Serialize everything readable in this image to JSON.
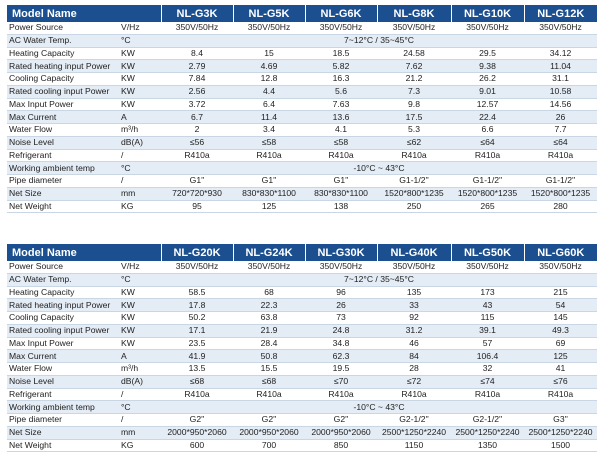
{
  "table1": {
    "header_label": "Model Name",
    "models": [
      "NL-G3K",
      "NL-G5K",
      "NL-G6K",
      "NL-G8K",
      "NL-G10K",
      "NL-G12K"
    ],
    "rows": [
      {
        "label": "Power Source",
        "unit": "V/Hz",
        "values": [
          "350V/50Hz",
          "350V/50Hz",
          "350V/50Hz",
          "350V/50Hz",
          "350V/50Hz",
          "350V/50Hz"
        ]
      },
      {
        "label": "AC Water Temp.",
        "unit": "°C",
        "span": "7~12°C / 35~45°C"
      },
      {
        "label": "Heating Capacity",
        "unit": "KW",
        "values": [
          "8.4",
          "15",
          "18.5",
          "24.58",
          "29.5",
          "34.12"
        ]
      },
      {
        "label": "Rated heating input Power",
        "unit": "KW",
        "values": [
          "2.79",
          "4.69",
          "5.82",
          "7.62",
          "9.38",
          "11.04"
        ]
      },
      {
        "label": "Cooling Capacity",
        "unit": "KW",
        "values": [
          "7.84",
          "12.8",
          "16.3",
          "21.2",
          "26.2",
          "31.1"
        ]
      },
      {
        "label": "Rated cooling input Power",
        "unit": "KW",
        "values": [
          "2.56",
          "4.4",
          "5.6",
          "7.3",
          "9.01",
          "10.58"
        ]
      },
      {
        "label": "Max Input Power",
        "unit": "KW",
        "values": [
          "3.72",
          "6.4",
          "7.63",
          "9.8",
          "12.57",
          "14.56"
        ]
      },
      {
        "label": "Max Current",
        "unit": "A",
        "values": [
          "6.7",
          "11.4",
          "13.6",
          "17.5",
          "22.4",
          "26"
        ]
      },
      {
        "label": "Water Flow",
        "unit": "m³/h",
        "values": [
          "2",
          "3.4",
          "4.1",
          "5.3",
          "6.6",
          "7.7"
        ]
      },
      {
        "label": "Noise Level",
        "unit": "dB(A)",
        "values": [
          "≤56",
          "≤58",
          "≤58",
          "≤62",
          "≤64",
          "≤64"
        ]
      },
      {
        "label": "Refrigerant",
        "unit": "/",
        "values": [
          "R410a",
          "R410a",
          "R410a",
          "R410a",
          "R410a",
          "R410a"
        ]
      },
      {
        "label": "Working ambient temp",
        "unit": "°C",
        "span": "-10°C ~ 43°C"
      },
      {
        "label": "Pipe diameter",
        "unit": "/",
        "values": [
          "G1''",
          "G1''",
          "G1''",
          "G1-1/2''",
          "G1-1/2''",
          "G1-1/2''"
        ]
      },
      {
        "label": "Net Size",
        "unit": "mm",
        "values": [
          "720*720*930",
          "830*830*1100",
          "830*830*1100",
          "1520*800*1235",
          "1520*800*1235",
          "1520*800*1235"
        ]
      },
      {
        "label": "Net Weight",
        "unit": "KG",
        "values": [
          "95",
          "125",
          "138",
          "250",
          "265",
          "280"
        ]
      }
    ]
  },
  "table2": {
    "header_label": "Model Name",
    "models": [
      "NL-G20K",
      "NL-G24K",
      "NL-G30K",
      "NL-G40K",
      "NL-G50K",
      "NL-G60K"
    ],
    "rows": [
      {
        "label": "Power Source",
        "unit": "V/Hz",
        "values": [
          "350V/50Hz",
          "350V/50Hz",
          "350V/50Hz",
          "350V/50Hz",
          "350V/50Hz",
          "350V/50Hz"
        ]
      },
      {
        "label": "AC Water Temp.",
        "unit": "°C",
        "span": "7~12°C / 35~45°C"
      },
      {
        "label": "Heating Capacity",
        "unit": "KW",
        "values": [
          "58.5",
          "68",
          "96",
          "135",
          "173",
          "215"
        ]
      },
      {
        "label": "Rated heating input Power",
        "unit": "KW",
        "values": [
          "17.8",
          "22.3",
          "26",
          "33",
          "43",
          "54"
        ]
      },
      {
        "label": "Cooling Capacity",
        "unit": "KW",
        "values": [
          "50.2",
          "63.8",
          "73",
          "92",
          "115",
          "145"
        ]
      },
      {
        "label": "Rated cooling input Power",
        "unit": "KW",
        "values": [
          "17.1",
          "21.9",
          "24.8",
          "31.2",
          "39.1",
          "49.3"
        ]
      },
      {
        "label": "Max Input Power",
        "unit": "KW",
        "values": [
          "23.5",
          "28.4",
          "34.8",
          "46",
          "57",
          "69"
        ]
      },
      {
        "label": "Max Current",
        "unit": "A",
        "values": [
          "41.9",
          "50.8",
          "62.3",
          "84",
          "106.4",
          "125"
        ]
      },
      {
        "label": "Water Flow",
        "unit": "m³/h",
        "values": [
          "13.5",
          "15.5",
          "19.5",
          "28",
          "32",
          "41"
        ]
      },
      {
        "label": "Noise Level",
        "unit": "dB(A)",
        "values": [
          "≤68",
          "≤68",
          "≤70",
          "≤72",
          "≤74",
          "≤76"
        ]
      },
      {
        "label": "Refrigerant",
        "unit": "/",
        "values": [
          "R410a",
          "R410a",
          "R410a",
          "R410a",
          "R410a",
          "R410a"
        ]
      },
      {
        "label": "Working ambient temp",
        "unit": "°C",
        "span": "-10°C ~ 43°C"
      },
      {
        "label": "Pipe diameter",
        "unit": "/",
        "values": [
          "G2''",
          "G2''",
          "G2''",
          "G2-1/2''",
          "G2-1/2''",
          "G3''"
        ]
      },
      {
        "label": "Net Size",
        "unit": "mm",
        "values": [
          "2000*950*2060",
          "2000*950*2060",
          "2000*950*2060",
          "2500*1250*2240",
          "2500*1250*2240",
          "2500*1250*2240"
        ]
      },
      {
        "label": "Net Weight",
        "unit": "KG",
        "values": [
          "600",
          "700",
          "850",
          "1150",
          "1350",
          "1500"
        ]
      }
    ]
  }
}
